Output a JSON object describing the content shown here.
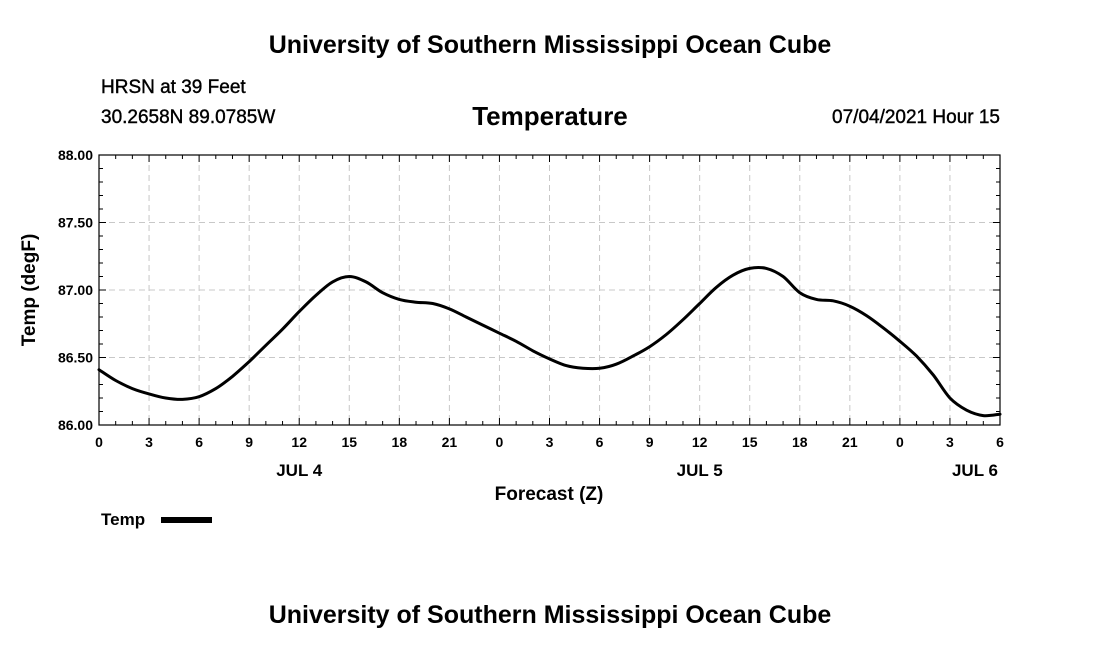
{
  "header": {
    "title": "University of Southern Mississippi Ocean Cube",
    "station": "HRSN at 39 Feet",
    "coords": "30.2658N  89.0785W",
    "variable": "Temperature",
    "datetime": "07/04/2021 Hour 15"
  },
  "footer": {
    "title": "University of Southern Mississippi Ocean Cube"
  },
  "chart_data": {
    "type": "line",
    "title": "Temperature",
    "xlabel": "Forecast (Z)",
    "ylabel": "Temp (degF)",
    "ylim": [
      86.0,
      88.0
    ],
    "yticks": [
      "86.00",
      "86.50",
      "87.00",
      "87.50",
      "88.00"
    ],
    "xlim": [
      0,
      54
    ],
    "xticks": [
      "0",
      "3",
      "6",
      "9",
      "12",
      "15",
      "18",
      "21",
      "0",
      "3",
      "6",
      "9",
      "12",
      "15",
      "18",
      "21",
      "0",
      "3",
      "6"
    ],
    "date_labels": [
      {
        "label": "JUL 4",
        "hour": 12
      },
      {
        "label": "JUL 5",
        "hour": 36
      },
      {
        "label": "JUL 6",
        "hour": 52.5
      }
    ],
    "grid": true,
    "legend": "bottom-left",
    "series": [
      {
        "name": "Temp",
        "color": "#000000",
        "x": [
          0,
          1,
          2,
          3,
          4,
          5,
          6,
          7,
          8,
          9,
          10,
          11,
          12,
          13,
          14,
          15,
          16,
          17,
          18,
          19,
          20,
          21,
          22,
          23,
          24,
          25,
          26,
          27,
          28,
          29,
          30,
          31,
          32,
          33,
          34,
          35,
          36,
          37,
          38,
          39,
          40,
          41,
          42,
          43,
          44,
          45,
          46,
          47,
          48,
          49,
          50,
          51,
          52,
          53,
          54
        ],
        "values": [
          86.41,
          86.33,
          86.27,
          86.23,
          86.2,
          86.19,
          86.21,
          86.27,
          86.36,
          86.47,
          86.59,
          86.71,
          86.84,
          86.96,
          87.06,
          87.1,
          87.06,
          86.98,
          86.93,
          86.91,
          86.9,
          86.86,
          86.8,
          86.74,
          86.68,
          86.62,
          86.55,
          86.49,
          86.44,
          86.42,
          86.42,
          86.45,
          86.51,
          86.58,
          86.67,
          86.78,
          86.9,
          87.02,
          87.11,
          87.16,
          87.16,
          87.1,
          86.98,
          86.93,
          86.92,
          86.88,
          86.81,
          86.72,
          86.62,
          86.51,
          86.37,
          86.2,
          86.11,
          86.07,
          86.08
        ]
      }
    ]
  }
}
